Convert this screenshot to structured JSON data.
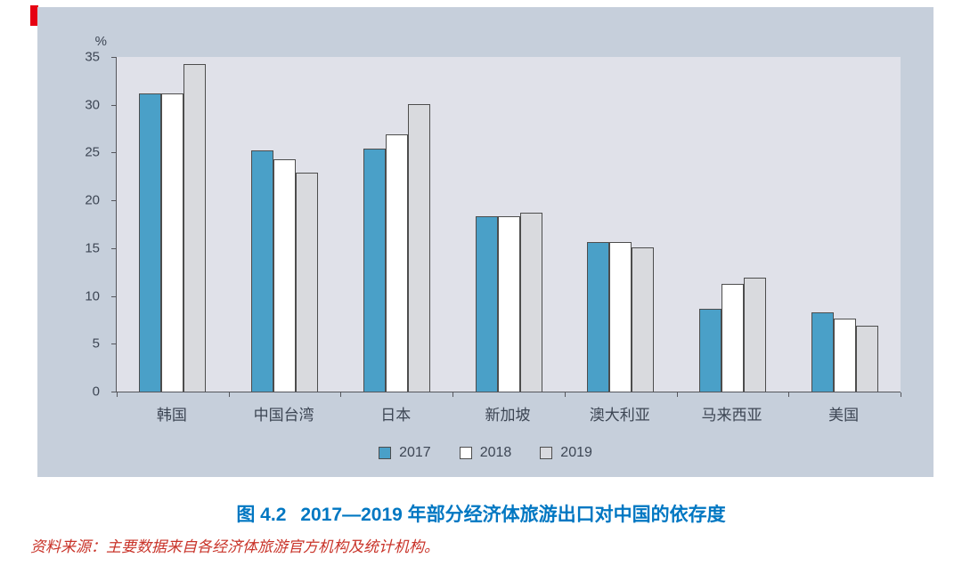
{
  "colors": {
    "accent_red": "#e60012",
    "panel_bg": "#c6cfdb",
    "plot_bg": "#e0e1e9",
    "axis": "#55565c",
    "text": "#3d4654",
    "caption": "#0077c2",
    "source": "#c9342a",
    "bar_border": "#4d4d4d"
  },
  "chart_data": {
    "type": "bar",
    "title": "",
    "ylabel": "%",
    "ylim": [
      0,
      35
    ],
    "yticks": [
      0,
      5,
      10,
      15,
      20,
      25,
      30,
      35
    ],
    "grid": false,
    "legend_position": "bottom",
    "categories": [
      "韩国",
      "中国台湾",
      "日本",
      "新加坡",
      "澳大利亚",
      "马来西亚",
      "美国"
    ],
    "series": [
      {
        "name": "2017",
        "color": "#4aa0c8",
        "values": [
          31.2,
          25.2,
          25.4,
          18.3,
          15.6,
          8.7,
          8.3
        ]
      },
      {
        "name": "2018",
        "color": "#ffffff",
        "values": [
          31.2,
          24.3,
          26.9,
          18.3,
          15.6,
          11.3,
          7.6
        ]
      },
      {
        "name": "2019",
        "color": "#d9dade",
        "values": [
          34.3,
          22.9,
          30.1,
          18.7,
          15.1,
          11.9,
          6.9
        ]
      }
    ]
  },
  "caption": {
    "label": "图 4.2",
    "title": "2017—2019 年部分经济体旅游出口对中国的依存度"
  },
  "source": "资料来源：主要数据来自各经济体旅游官方机构及统计机构。"
}
